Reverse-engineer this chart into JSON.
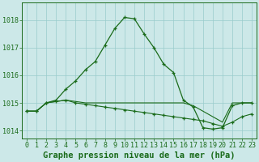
{
  "title": "Graphe pression niveau de la mer (hPa)",
  "xlabel_hours": [
    0,
    1,
    2,
    3,
    4,
    5,
    6,
    7,
    8,
    9,
    10,
    11,
    12,
    13,
    14,
    15,
    16,
    17,
    18,
    19,
    20,
    21,
    22,
    23
  ],
  "line1": [
    1014.7,
    1014.7,
    1015.0,
    1015.1,
    1015.5,
    1015.8,
    1016.2,
    1016.5,
    1017.1,
    1017.7,
    1018.1,
    1018.05,
    1017.5,
    1017.0,
    1016.4,
    1016.1,
    1015.1,
    1014.85,
    1014.1,
    1014.05,
    1014.1,
    1014.9,
    1015.0,
    1015.0
  ],
  "line2": [
    1014.7,
    1014.7,
    1015.0,
    1015.05,
    1015.1,
    1015.0,
    1014.95,
    1014.9,
    1014.85,
    1014.8,
    1014.75,
    1014.7,
    1014.65,
    1014.6,
    1014.55,
    1014.5,
    1014.45,
    1014.4,
    1014.35,
    1014.25,
    1014.15,
    1014.3,
    1014.5,
    1014.6
  ],
  "line3": [
    1014.7,
    1014.7,
    1015.0,
    1015.05,
    1015.1,
    1015.05,
    1015.0,
    1015.0,
    1015.0,
    1015.0,
    1015.0,
    1015.0,
    1015.0,
    1015.0,
    1015.0,
    1015.0,
    1015.0,
    1014.9,
    1014.7,
    1014.5,
    1014.3,
    1015.0,
    1015.0,
    1015.0
  ],
  "ylim": [
    1013.7,
    1018.65
  ],
  "yticks": [
    1014,
    1015,
    1016,
    1017
  ],
  "ytick_top": "1018",
  "bg_color": "#cce8e8",
  "grid_color": "#99cccc",
  "line_color": "#1a6b1a",
  "marker": "+",
  "title_fontsize": 7.5,
  "tick_fontsize": 6.0,
  "fig_width": 3.2,
  "fig_height": 2.0,
  "dpi": 100
}
